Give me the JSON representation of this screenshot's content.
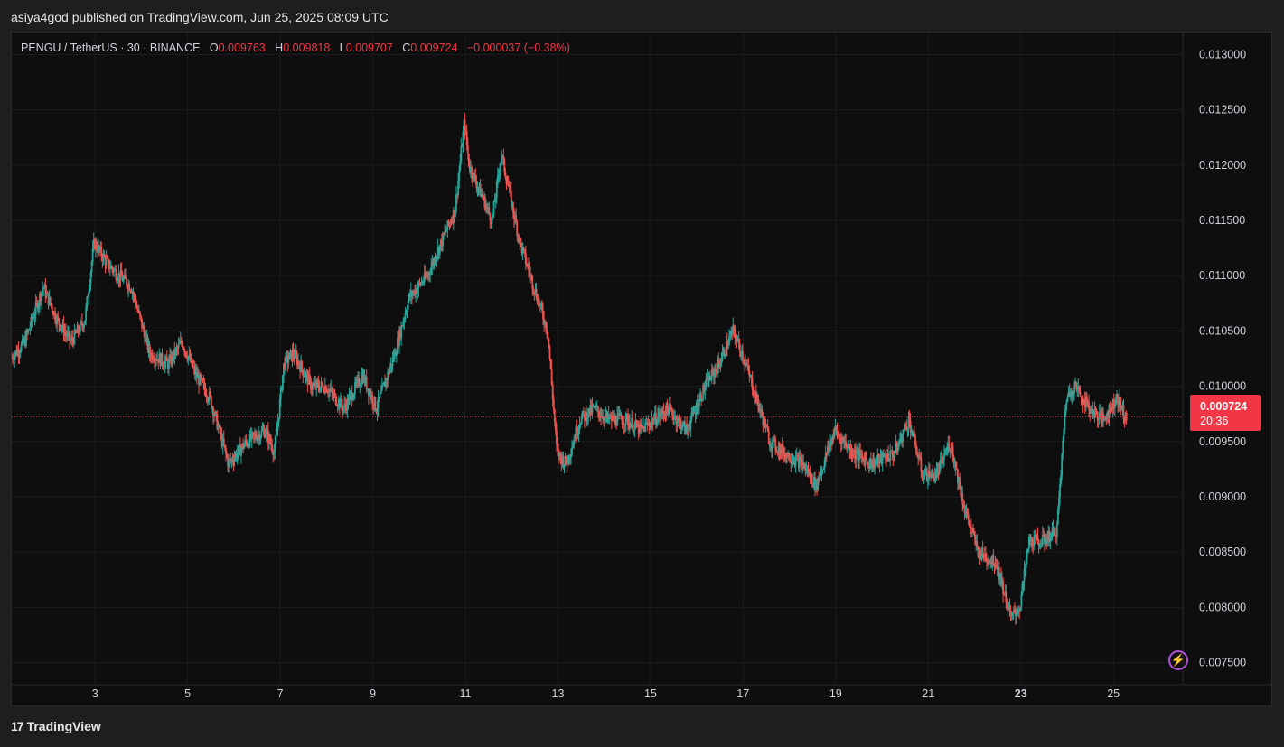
{
  "header": {
    "published_text": "asiya4god published on TradingView.com, Jun 25, 2025 08:09 UTC"
  },
  "legend": {
    "symbol": "PENGU / TetherUS · 30 · BINANCE",
    "o_label": "O",
    "o_value": "0.009763",
    "h_label": "H",
    "h_value": "0.009818",
    "l_label": "L",
    "l_value": "0.009707",
    "c_label": "C",
    "c_value": "0.009724",
    "change": "−0.000037 (−0.38%)"
  },
  "price_tag": {
    "price": "0.009724",
    "countdown": "20:36"
  },
  "footer": {
    "brand": "TradingView",
    "logo_text": "17"
  },
  "colors": {
    "up": "#26a69a",
    "down": "#ef5350",
    "background": "#0e0e0f",
    "grid": "#1f1f22",
    "current_price": "#f23645",
    "bolt": "#b04fd7"
  },
  "icons": {
    "bolt": "lightning-bolt-icon"
  },
  "chart_data": {
    "type": "candlestick",
    "title": "PENGU / TetherUS · 30 · BINANCE",
    "ylim": [
      0.0073,
      0.0132
    ],
    "y_ticks": [
      "0.013000",
      "0.012500",
      "0.012000",
      "0.011500",
      "0.011000",
      "0.010500",
      "0.010000",
      "0.009500",
      "0.009000",
      "0.008500",
      "0.008000",
      "0.007500"
    ],
    "y_tick_values": [
      0.013,
      0.0125,
      0.012,
      0.0115,
      0.011,
      0.0105,
      0.01,
      0.0095,
      0.009,
      0.0085,
      0.008,
      0.0075
    ],
    "x_ticks": [
      "3",
      "5",
      "7",
      "9",
      "11",
      "13",
      "15",
      "17",
      "19",
      "21",
      "23",
      "25"
    ],
    "x_tick_values": [
      3,
      5,
      7,
      9,
      11,
      13,
      15,
      17,
      19,
      21,
      23,
      25
    ],
    "bold_x_ticks": [
      "23"
    ],
    "xlim": [
      1.2,
      26.5
    ],
    "current_price": 0.009724,
    "path_points": [
      [
        1.2,
        0.01025
      ],
      [
        1.5,
        0.0104
      ],
      [
        1.9,
        0.0109
      ],
      [
        2.2,
        0.0106
      ],
      [
        2.5,
        0.0104
      ],
      [
        2.8,
        0.0106
      ],
      [
        3.0,
        0.0113
      ],
      [
        3.3,
        0.0111
      ],
      [
        3.8,
        0.0109
      ],
      [
        4.2,
        0.0103
      ],
      [
        4.6,
        0.0102
      ],
      [
        4.9,
        0.0104
      ],
      [
        5.2,
        0.0101
      ],
      [
        5.5,
        0.0099
      ],
      [
        5.9,
        0.0093
      ],
      [
        6.3,
        0.0095
      ],
      [
        6.7,
        0.0096
      ],
      [
        6.9,
        0.0094
      ],
      [
        7.1,
        0.0102
      ],
      [
        7.3,
        0.0103
      ],
      [
        7.7,
        0.01
      ],
      [
        8.0,
        0.01
      ],
      [
        8.4,
        0.0098
      ],
      [
        8.8,
        0.0101
      ],
      [
        9.1,
        0.0098
      ],
      [
        9.5,
        0.0103
      ],
      [
        9.8,
        0.0108
      ],
      [
        10.2,
        0.011
      ],
      [
        10.6,
        0.0114
      ],
      [
        10.8,
        0.0116
      ],
      [
        11.0,
        0.0124
      ],
      [
        11.1,
        0.012
      ],
      [
        11.3,
        0.0118
      ],
      [
        11.6,
        0.0115
      ],
      [
        11.8,
        0.0121
      ],
      [
        12.0,
        0.0117
      ],
      [
        12.2,
        0.0113
      ],
      [
        12.5,
        0.0109
      ],
      [
        12.8,
        0.0105
      ],
      [
        13.0,
        0.0094
      ],
      [
        13.2,
        0.0093
      ],
      [
        13.5,
        0.0097
      ],
      [
        13.8,
        0.0098
      ],
      [
        14.1,
        0.0097
      ],
      [
        14.5,
        0.0097
      ],
      [
        14.8,
        0.0096
      ],
      [
        15.1,
        0.0097
      ],
      [
        15.4,
        0.0098
      ],
      [
        15.8,
        0.0096
      ],
      [
        16.2,
        0.01
      ],
      [
        16.5,
        0.0102
      ],
      [
        16.8,
        0.0105
      ],
      [
        17.0,
        0.0103
      ],
      [
        17.3,
        0.0099
      ],
      [
        17.6,
        0.0095
      ],
      [
        17.9,
        0.0094
      ],
      [
        18.3,
        0.0093
      ],
      [
        18.6,
        0.0091
      ],
      [
        19.0,
        0.0096
      ],
      [
        19.4,
        0.0094
      ],
      [
        19.8,
        0.0093
      ],
      [
        20.3,
        0.0094
      ],
      [
        20.6,
        0.0097
      ],
      [
        20.9,
        0.0092
      ],
      [
        21.2,
        0.0092
      ],
      [
        21.5,
        0.0095
      ],
      [
        21.8,
        0.0089
      ],
      [
        22.1,
        0.0085
      ],
      [
        22.5,
        0.0084
      ],
      [
        22.8,
        0.0079
      ],
      [
        23.0,
        0.008
      ],
      [
        23.2,
        0.0086
      ],
      [
        23.5,
        0.0086
      ],
      [
        23.8,
        0.0087
      ],
      [
        24.0,
        0.0099
      ],
      [
        24.2,
        0.01
      ],
      [
        24.5,
        0.0098
      ],
      [
        24.8,
        0.0097
      ],
      [
        25.1,
        0.0099
      ],
      [
        25.3,
        0.0097
      ]
    ]
  }
}
